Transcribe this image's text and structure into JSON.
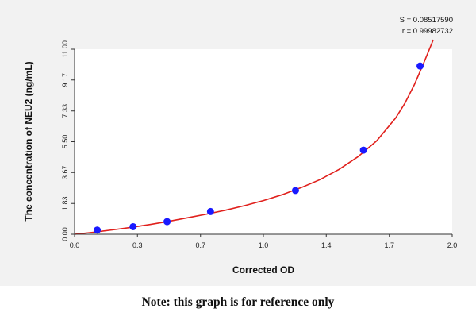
{
  "chart_data": {
    "type": "scatter",
    "xlabel": "Corrected OD",
    "ylabel": "The concentration of NEU2 (ng/mL)",
    "xlim": [
      0.0,
      2.0
    ],
    "ylim": [
      0.0,
      11.0
    ],
    "x_ticks": [
      "0.0",
      "0.3",
      "0.7",
      "1.0",
      "1.4",
      "1.7",
      "2.0"
    ],
    "x_tick_values": [
      0.0,
      0.333,
      0.667,
      1.0,
      1.333,
      1.667,
      2.0
    ],
    "y_ticks": [
      "0.00",
      "1.83",
      "3.67",
      "5.50",
      "7.33",
      "9.17",
      "11.00"
    ],
    "y_tick_values": [
      0.0,
      1.83,
      3.67,
      5.5,
      7.33,
      9.17,
      11.0
    ],
    "grid": false,
    "points": [
      {
        "x": 0.12,
        "y": 0.25
      },
      {
        "x": 0.31,
        "y": 0.45
      },
      {
        "x": 0.49,
        "y": 0.75
      },
      {
        "x": 0.72,
        "y": 1.35
      },
      {
        "x": 1.17,
        "y": 2.6
      },
      {
        "x": 1.53,
        "y": 5.0
      },
      {
        "x": 1.83,
        "y": 10.0
      }
    ],
    "point_color": "#1a1aff",
    "fit_curve": {
      "color": "#e0201c",
      "x": [
        0.0,
        0.1,
        0.2,
        0.3,
        0.4,
        0.5,
        0.6,
        0.7,
        0.8,
        0.9,
        1.0,
        1.1,
        1.2,
        1.3,
        1.4,
        1.5,
        1.6,
        1.7,
        1.75,
        1.8,
        1.85,
        1.9
      ],
      "y": [
        0.0,
        0.12,
        0.26,
        0.41,
        0.58,
        0.77,
        0.98,
        1.2,
        1.43,
        1.7,
        2.0,
        2.35,
        2.77,
        3.25,
        3.85,
        4.6,
        5.55,
        6.9,
        7.8,
        8.9,
        10.2,
        11.6
      ]
    }
  },
  "stats": {
    "s_line": "S = 0.08517590",
    "r_line": "r = 0.99982732"
  },
  "note": "Note: this graph is for reference only"
}
